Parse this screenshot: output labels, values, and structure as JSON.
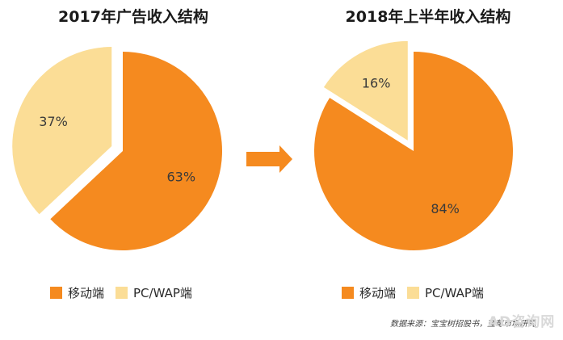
{
  "colors": {
    "mobile": "#f58a1f",
    "pc": "#fbdd96",
    "arrow": "#f58a1f",
    "label": "#3a3a3a"
  },
  "chart_data": [
    {
      "type": "pie",
      "title": "2017年广告收入结构",
      "slices": [
        {
          "name": "移动端",
          "value": 63,
          "label": "63%"
        },
        {
          "name": "PC/WAP端",
          "value": 37,
          "label": "37%"
        }
      ],
      "legend": "bottom"
    },
    {
      "type": "pie",
      "title": "2018年上半年收入结构",
      "slices": [
        {
          "name": "移动端",
          "value": 84,
          "label": "84%"
        },
        {
          "name": "PC/WAP端",
          "value": 16,
          "label": "16%"
        }
      ],
      "legend": "bottom"
    }
  ],
  "source": "数据来源：宝宝树招股书，蓝莓市场研究",
  "watermark": "AD咨询网"
}
